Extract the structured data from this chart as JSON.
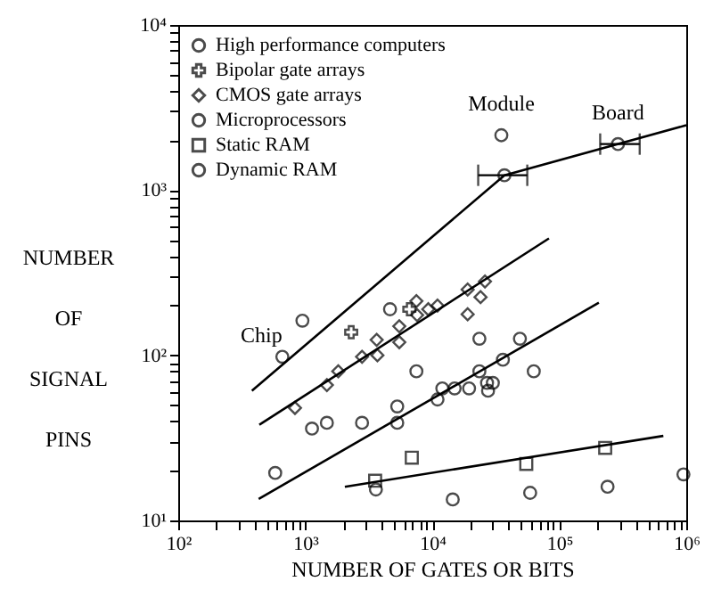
{
  "chart_data": {
    "type": "scatter",
    "xlabel": "NUMBER OF GATES OR BITS",
    "ylabel": "NUMBER OF SIGNAL PINS",
    "log": "xy",
    "grid": false,
    "legend": "top left",
    "xlim": [
      100,
      1000000
    ],
    "ylim": [
      10,
      10000
    ],
    "xticks": [
      {
        "value": 100,
        "label": "10²"
      },
      {
        "value": 200,
        "label": null
      },
      {
        "value": 300,
        "label": null
      },
      {
        "value": 400,
        "label": null
      },
      {
        "value": 500,
        "label": null
      },
      {
        "value": 600,
        "label": null
      },
      {
        "value": 700,
        "label": null
      },
      {
        "value": 800,
        "label": null
      },
      {
        "value": 900,
        "label": null
      },
      {
        "value": 1000,
        "label": "10³"
      },
      {
        "value": 2000,
        "label": null
      },
      {
        "value": 3000,
        "label": null
      },
      {
        "value": 4000,
        "label": null
      },
      {
        "value": 5000,
        "label": null
      },
      {
        "value": 6000,
        "label": null
      },
      {
        "value": 7000,
        "label": null
      },
      {
        "value": 8000,
        "label": null
      },
      {
        "value": 9000,
        "label": null
      },
      {
        "value": 10000,
        "label": "10⁴"
      },
      {
        "value": 20000,
        "label": null
      },
      {
        "value": 30000,
        "label": null
      },
      {
        "value": 40000,
        "label": null
      },
      {
        "value": 50000,
        "label": null
      },
      {
        "value": 60000,
        "label": null
      },
      {
        "value": 70000,
        "label": null
      },
      {
        "value": 80000,
        "label": null
      },
      {
        "value": 90000,
        "label": null
      },
      {
        "value": 100000,
        "label": "10⁵"
      },
      {
        "value": 200000,
        "label": null
      },
      {
        "value": 300000,
        "label": null
      },
      {
        "value": 400000,
        "label": null
      },
      {
        "value": 500000,
        "label": null
      },
      {
        "value": 600000,
        "label": null
      },
      {
        "value": 700000,
        "label": null
      },
      {
        "value": 800000,
        "label": null
      },
      {
        "value": 900000,
        "label": null
      },
      {
        "value": 1000000,
        "label": "10⁶"
      }
    ],
    "yticks": [
      {
        "value": 10,
        "label": "10¹"
      },
      {
        "value": 20,
        "label": null
      },
      {
        "value": 30,
        "label": null
      },
      {
        "value": 40,
        "label": null
      },
      {
        "value": 50,
        "label": null
      },
      {
        "value": 60,
        "label": null
      },
      {
        "value": 70,
        "label": null
      },
      {
        "value": 80,
        "label": null
      },
      {
        "value": 90,
        "label": null
      },
      {
        "value": 100,
        "label": "10²"
      },
      {
        "value": 200,
        "label": null
      },
      {
        "value": 300,
        "label": null
      },
      {
        "value": 400,
        "label": null
      },
      {
        "value": 500,
        "label": null
      },
      {
        "value": 600,
        "label": null
      },
      {
        "value": 700,
        "label": null
      },
      {
        "value": 800,
        "label": null
      },
      {
        "value": 900,
        "label": null
      },
      {
        "value": 1000,
        "label": "10³"
      },
      {
        "value": 2000,
        "label": null
      },
      {
        "value": 3000,
        "label": null
      },
      {
        "value": 4000,
        "label": null
      },
      {
        "value": 5000,
        "label": null
      },
      {
        "value": 6000,
        "label": null
      },
      {
        "value": 7000,
        "label": null
      },
      {
        "value": 8000,
        "label": null
      },
      {
        "value": 9000,
        "label": null
      },
      {
        "value": 10000,
        "label": "10⁴"
      }
    ],
    "series": [
      {
        "name": "High performance computers",
        "color": "#000000",
        "marker": "circle",
        "x": [
          660,
          950,
          4650,
          35000,
          37000,
          290000
        ],
        "values": [
          98,
          162,
          190,
          2150,
          1230,
          1900
        ],
        "xerrors": [
          null,
          null,
          null,
          null,
          [
            23000,
            56000
          ],
          [
            210000,
            430000
          ]
        ]
      },
      {
        "name": "Bipolar gate arrays",
        "color": "#000000",
        "marker": "cross",
        "x": [
          2300,
          6600
        ],
        "values": [
          138,
          190
        ]
      },
      {
        "name": "CMOS gate arrays",
        "color": "#000000",
        "marker": "diamond",
        "x": [
          830,
          1480,
          1820,
          2800,
          3650,
          3700,
          5500,
          5500,
          7500,
          7600,
          9300,
          11000,
          19000,
          19000,
          24000,
          26000
        ],
        "values": [
          48,
          66,
          80,
          98,
          124,
          100,
          120,
          150,
          213,
          175,
          190,
          200,
          250,
          177,
          225,
          280
        ]
      },
      {
        "name": "Microprocessors",
        "color": "#000000",
        "marker": "circle",
        "x": [
          580,
          1130,
          1480,
          2800,
          5300,
          5300,
          7500,
          11000,
          12000,
          15000,
          19500,
          23500,
          23500,
          27000,
          27500,
          30000,
          36000,
          49000,
          63000
        ],
        "values": [
          19.4,
          36,
          39,
          39,
          39,
          49,
          80,
          54,
          63,
          63,
          63,
          126,
          80,
          68,
          61,
          68,
          94,
          126,
          80
        ]
      },
      {
        "name": "Static RAM",
        "color": "#000000",
        "marker": "square",
        "x": [
          3550,
          6900,
          55000,
          230000
        ],
        "values": [
          17.4,
          24,
          22,
          27.5
        ]
      },
      {
        "name": "Dynamic RAM",
        "color": "#000000",
        "marker": "circle",
        "x": [
          3600,
          14500,
          59000,
          240000,
          950000
        ],
        "values": [
          15.4,
          13.4,
          14.7,
          16,
          19
        ]
      },
      {
        "type": "line",
        "color": "#000000",
        "x": [
          380,
          37000,
          1000000
        ],
        "values": [
          61,
          1230,
          2470
        ]
      },
      {
        "type": "line",
        "color": "#000000",
        "x": [
          435,
          83000
        ],
        "values": [
          38,
          510
        ]
      },
      {
        "type": "line",
        "color": "#000000",
        "x": [
          430,
          205000
        ],
        "values": [
          13.5,
          208
        ]
      },
      {
        "type": "line",
        "color": "#000000",
        "x": [
          2050,
          660000
        ],
        "values": [
          16,
          32.5
        ]
      }
    ],
    "annotations": [
      {
        "text": "Chip",
        "x": 660,
        "y": 98
      },
      {
        "text": "Module",
        "x": 35000,
        "y": 2150
      },
      {
        "text": "Board",
        "x": 290000,
        "y": 1900
      }
    ]
  }
}
